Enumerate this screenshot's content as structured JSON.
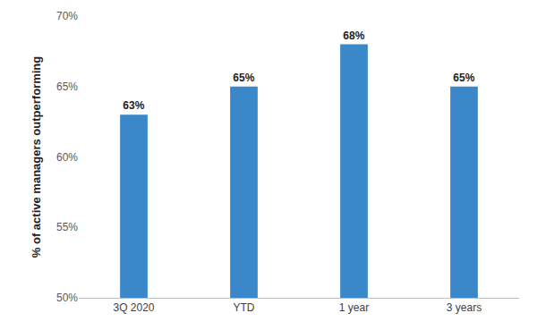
{
  "chart_data": {
    "type": "bar",
    "y_label": "% of active managers outperforming",
    "categories": [
      "3Q 2020",
      "YTD",
      "1 year",
      "3 years"
    ],
    "values": [
      63,
      65,
      68,
      65
    ],
    "value_labels": [
      "63%",
      "65%",
      "68%",
      "65%"
    ],
    "color": "#3a87c9",
    "ylim": [
      50,
      70
    ],
    "yticks": [
      {
        "value": 50,
        "label": "50%"
      },
      {
        "value": 55,
        "label": "55%"
      },
      {
        "value": 60,
        "label": "60%"
      },
      {
        "value": 65,
        "label": "65%"
      },
      {
        "value": 70,
        "label": "70%"
      }
    ],
    "grid": false,
    "data_labels": true
  }
}
